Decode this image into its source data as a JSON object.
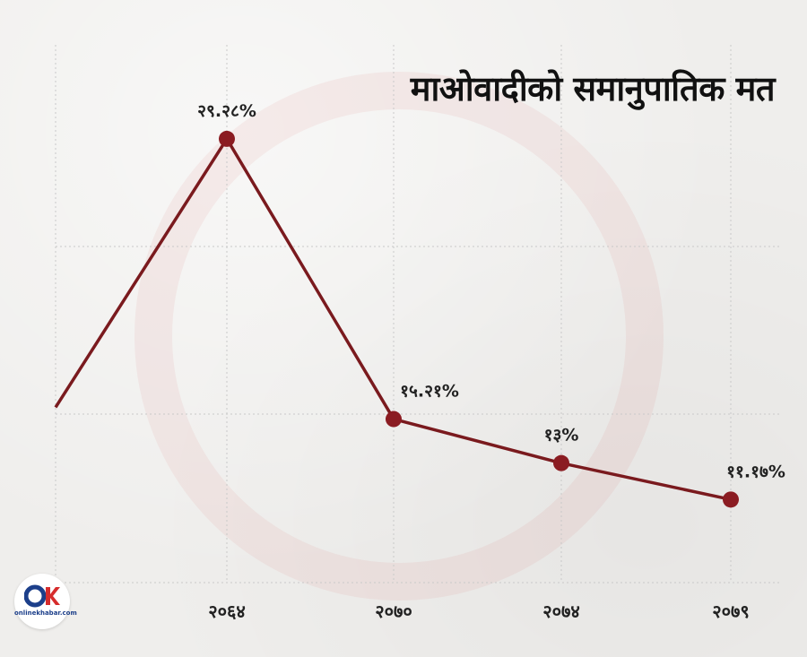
{
  "title": "माओवादीको समानुपातिक मत",
  "logo": {
    "text": "onlinekhabar.com"
  },
  "colors": {
    "line": "#7a1a1e",
    "point": "#8b1c22",
    "grid": "#c9c9c9",
    "text": "#222222"
  },
  "chart_data": {
    "type": "line",
    "title": "माओवादीको समानुपातिक मत",
    "xlabel": "",
    "ylabel": "",
    "categories": [
      "२०६४",
      "२०७०",
      "२०७४",
      "२०७९"
    ],
    "series": [
      {
        "values": [
          29.28,
          15.21,
          13,
          11.17
        ],
        "labels": [
          "२९.२८%",
          "१५.२१%",
          "१३%",
          "११.१७%"
        ]
      }
    ],
    "lead_in_value": 15.8,
    "ylim": [
      7,
      34
    ],
    "grid": true,
    "legend": "none"
  }
}
